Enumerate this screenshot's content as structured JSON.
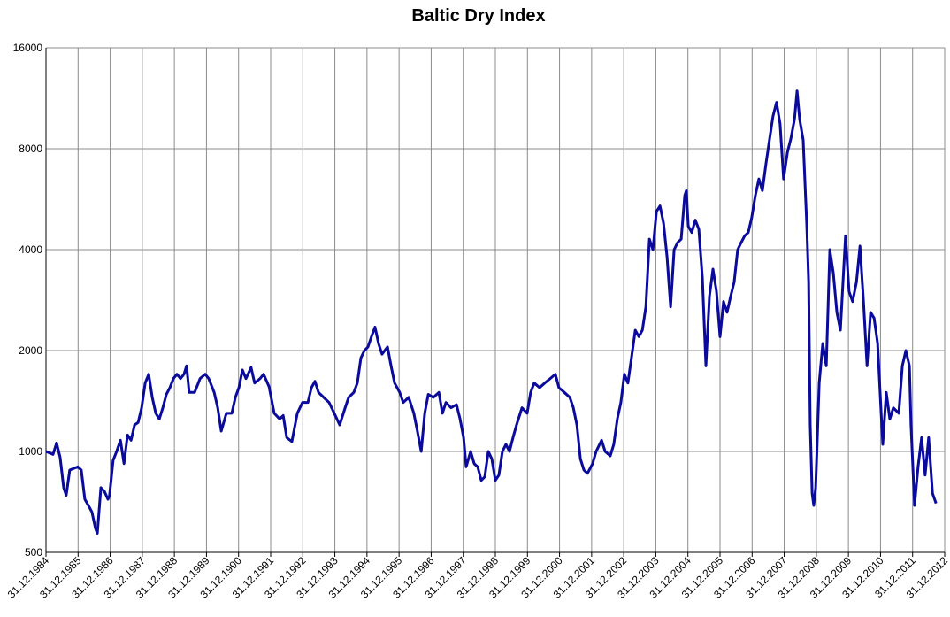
{
  "chart_data": {
    "type": "line",
    "title": "Baltic Dry Index",
    "log_y": true,
    "grid": true,
    "ylim": [
      500,
      16000
    ],
    "yticks": [
      500,
      1000,
      2000,
      4000,
      8000,
      16000
    ],
    "xlim": [
      1985,
      2013
    ],
    "xticks": [
      {
        "value": 1985,
        "label": "31.12.1984"
      },
      {
        "value": 1986,
        "label": "31.12.1985"
      },
      {
        "value": 1987,
        "label": "31.12.1986"
      },
      {
        "value": 1988,
        "label": "31.12.1987"
      },
      {
        "value": 1989,
        "label": "31.12.1988"
      },
      {
        "value": 1990,
        "label": "31.12.1989"
      },
      {
        "value": 1991,
        "label": "31.12.1990"
      },
      {
        "value": 1992,
        "label": "31.12.1991"
      },
      {
        "value": 1993,
        "label": "31.12.1992"
      },
      {
        "value": 1994,
        "label": "31.12.1993"
      },
      {
        "value": 1995,
        "label": "31.12.1994"
      },
      {
        "value": 1996,
        "label": "31.12.1995"
      },
      {
        "value": 1997,
        "label": "31.12.1996"
      },
      {
        "value": 1998,
        "label": "31.12.1997"
      },
      {
        "value": 1999,
        "label": "31.12.1998"
      },
      {
        "value": 2000,
        "label": "31.12.1999"
      },
      {
        "value": 2001,
        "label": "31.12.2000"
      },
      {
        "value": 2002,
        "label": "31.12.2001"
      },
      {
        "value": 2003,
        "label": "31.12.2002"
      },
      {
        "value": 2004,
        "label": "31.12.2003"
      },
      {
        "value": 2005,
        "label": "31.12.2004"
      },
      {
        "value": 2006,
        "label": "31.12.2005"
      },
      {
        "value": 2007,
        "label": "31.12.2006"
      },
      {
        "value": 2008,
        "label": "31.12.2007"
      },
      {
        "value": 2009,
        "label": "31.12.2008"
      },
      {
        "value": 2010,
        "label": "31.12.2009"
      },
      {
        "value": 2011,
        "label": "31.12.2010"
      },
      {
        "value": 2012,
        "label": "31.12.2011"
      },
      {
        "value": 2013,
        "label": "31.12.2012"
      }
    ],
    "x": [
      1985.0,
      1985.22,
      1985.33,
      1985.44,
      1985.55,
      1985.63,
      1985.74,
      1985.99,
      1986.1,
      1986.21,
      1986.32,
      1986.43,
      1986.54,
      1986.6,
      1986.71,
      1986.82,
      1986.93,
      1986.98,
      1987.09,
      1987.2,
      1987.32,
      1987.43,
      1987.54,
      1987.65,
      1987.76,
      1987.87,
      1987.98,
      1988.09,
      1988.2,
      1988.31,
      1988.42,
      1988.53,
      1988.64,
      1988.75,
      1988.86,
      1988.97,
      1989.08,
      1989.19,
      1989.3,
      1989.38,
      1989.46,
      1989.63,
      1989.8,
      1989.96,
      1990.07,
      1990.24,
      1990.35,
      1990.46,
      1990.62,
      1990.79,
      1990.9,
      1991.01,
      1991.12,
      1991.23,
      1991.39,
      1991.5,
      1991.67,
      1991.78,
      1991.95,
      1992.11,
      1992.28,
      1992.39,
      1992.5,
      1992.66,
      1992.83,
      1992.99,
      1993.16,
      1993.27,
      1993.38,
      1993.49,
      1993.65,
      1993.82,
      1993.98,
      1994.15,
      1994.32,
      1994.43,
      1994.59,
      1994.7,
      1994.81,
      1994.92,
      1995.03,
      1995.14,
      1995.25,
      1995.36,
      1995.47,
      1995.64,
      1995.75,
      1995.86,
      1996.02,
      1996.13,
      1996.3,
      1996.46,
      1996.57,
      1996.69,
      1996.8,
      1996.91,
      1997.07,
      1997.24,
      1997.35,
      1997.46,
      1997.62,
      1997.79,
      1997.9,
      1998.01,
      1998.09,
      1998.23,
      1998.34,
      1998.45,
      1998.56,
      1998.67,
      1998.78,
      1998.89,
      1999.0,
      1999.11,
      1999.22,
      1999.33,
      1999.44,
      1999.55,
      1999.66,
      1999.83,
      1999.99,
      2000.1,
      2000.21,
      2000.38,
      2000.54,
      2000.71,
      2000.87,
      2000.98,
      2001.15,
      2001.32,
      2001.43,
      2001.54,
      2001.65,
      2001.76,
      2001.87,
      2002.03,
      2002.14,
      2002.31,
      2002.42,
      2002.58,
      2002.69,
      2002.8,
      2002.91,
      2003.02,
      2003.13,
      2003.24,
      2003.36,
      2003.47,
      2003.58,
      2003.69,
      2003.8,
      2003.91,
      2004.02,
      2004.13,
      2004.24,
      2004.35,
      2004.46,
      2004.57,
      2004.68,
      2004.79,
      2004.9,
      2004.95,
      2005.01,
      2005.12,
      2005.23,
      2005.34,
      2005.45,
      2005.56,
      2005.67,
      2005.78,
      2005.89,
      2006.0,
      2006.11,
      2006.22,
      2006.33,
      2006.44,
      2006.55,
      2006.66,
      2006.77,
      2006.88,
      2006.99,
      2007.1,
      2007.21,
      2007.32,
      2007.43,
      2007.54,
      2007.65,
      2007.76,
      2007.87,
      2007.98,
      2008.1,
      2008.21,
      2008.32,
      2008.4,
      2008.48,
      2008.59,
      2008.7,
      2008.76,
      2008.81,
      2008.87,
      2008.92,
      2008.98,
      2009.09,
      2009.2,
      2009.31,
      2009.42,
      2009.53,
      2009.64,
      2009.75,
      2009.86,
      2009.91,
      2010.02,
      2010.13,
      2010.25,
      2010.36,
      2010.47,
      2010.58,
      2010.69,
      2010.8,
      2010.91,
      2011.02,
      2011.07,
      2011.18,
      2011.29,
      2011.4,
      2011.57,
      2011.68,
      2011.79,
      2011.9,
      2011.95,
      2012.06,
      2012.17,
      2012.28,
      2012.39,
      2012.5,
      2012.62,
      2012.73
    ],
    "series": [
      {
        "color": "#0a0a9c",
        "values": [
          1000,
          980,
          1060,
          960,
          780,
          740,
          880,
          900,
          880,
          720,
          690,
          660,
          590,
          570,
          780,
          760,
          720,
          740,
          940,
          1000,
          1080,
          920,
          1120,
          1080,
          1200,
          1220,
          1350,
          1600,
          1700,
          1450,
          1300,
          1250,
          1350,
          1480,
          1550,
          1650,
          1700,
          1650,
          1700,
          1800,
          1500,
          1500,
          1650,
          1700,
          1650,
          1500,
          1350,
          1150,
          1300,
          1300,
          1450,
          1550,
          1750,
          1650,
          1780,
          1600,
          1650,
          1700,
          1560,
          1300,
          1250,
          1280,
          1100,
          1070,
          1300,
          1400,
          1400,
          1550,
          1620,
          1500,
          1450,
          1400,
          1300,
          1200,
          1350,
          1450,
          1500,
          1600,
          1900,
          2000,
          2050,
          2200,
          2350,
          2100,
          1950,
          2050,
          1800,
          1600,
          1500,
          1400,
          1450,
          1300,
          1150,
          1000,
          1300,
          1480,
          1450,
          1500,
          1300,
          1400,
          1350,
          1380,
          1250,
          1100,
          900,
          1000,
          920,
          900,
          820,
          840,
          1000,
          950,
          820,
          850,
          1000,
          1050,
          1000,
          1100,
          1200,
          1350,
          1300,
          1500,
          1600,
          1550,
          1600,
          1650,
          1700,
          1550,
          1500,
          1450,
          1350,
          1200,
          950,
          880,
          860,
          920,
          1000,
          1080,
          1000,
          970,
          1050,
          1250,
          1400,
          1700,
          1600,
          1900,
          2300,
          2200,
          2300,
          2700,
          4300,
          4000,
          5200,
          5400,
          4800,
          3800,
          2700,
          4000,
          4200,
          4300,
          5800,
          6000,
          4700,
          4500,
          4900,
          4600,
          3300,
          1800,
          2900,
          3500,
          3000,
          2200,
          2800,
          2600,
          2900,
          3200,
          4000,
          4200,
          4400,
          4500,
          5000,
          5800,
          6500,
          6000,
          7200,
          8500,
          10000,
          11000,
          9500,
          6500,
          7800,
          8600,
          9800,
          11900,
          9800,
          8500,
          4800,
          3200,
          1200,
          750,
          690,
          780,
          1600,
          2100,
          1800,
          4000,
          3400,
          2600,
          2300,
          3600,
          4400,
          3000,
          2800,
          3200,
          4100,
          2800,
          1800,
          2600,
          2500,
          2100,
          1300,
          1050,
          1500,
          1250,
          1350,
          1300,
          1800,
          2000,
          1800,
          1200,
          690,
          900,
          1100,
          850,
          1100,
          750,
          700
        ]
      }
    ]
  }
}
